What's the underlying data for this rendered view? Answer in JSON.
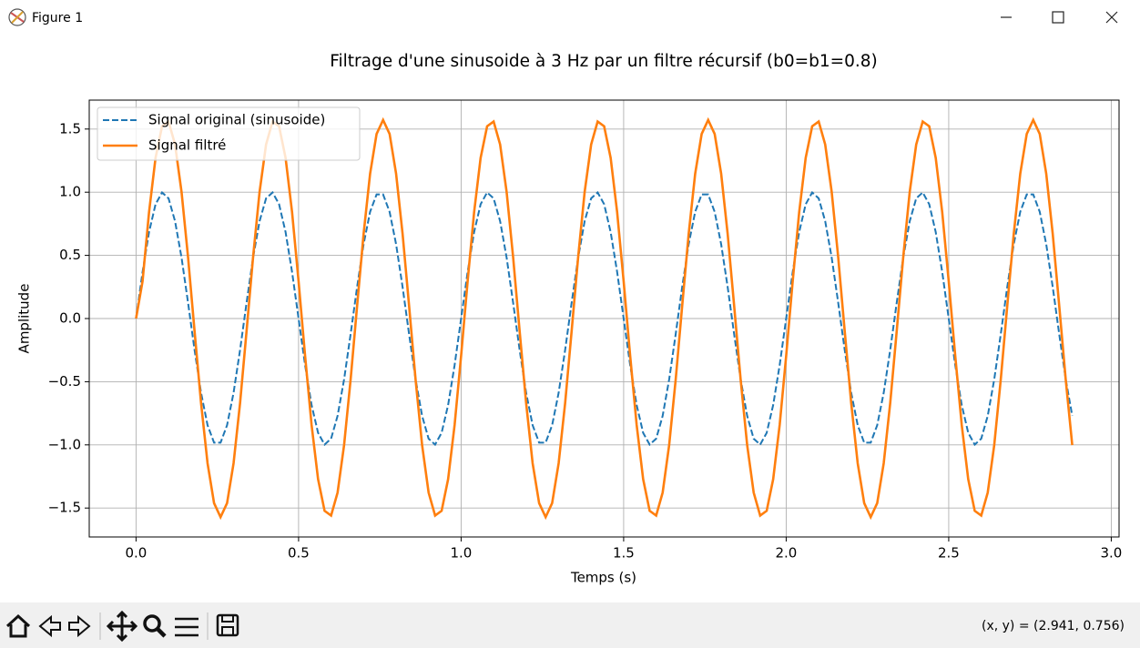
{
  "window": {
    "title": "Figure 1"
  },
  "chart_data": {
    "type": "line",
    "title": "Filtrage d'une sinusoide à 3 Hz par un filtre récursif (b0=b1=0.8)",
    "xlabel": "Temps (s)",
    "ylabel": "Amplitude",
    "x": [
      0,
      0.02,
      0.04,
      0.06,
      0.08,
      0.1,
      0.12,
      0.14,
      0.16,
      0.18,
      0.2,
      0.22,
      0.24,
      0.26,
      0.28,
      0.3,
      0.32,
      0.34,
      0.36,
      0.38,
      0.4,
      0.42,
      0.44,
      0.46,
      0.48,
      0.5,
      0.52,
      0.54,
      0.56,
      0.58,
      0.6,
      0.62,
      0.64,
      0.66,
      0.68,
      0.7,
      0.72,
      0.74,
      0.76,
      0.78,
      0.8,
      0.82,
      0.84,
      0.86,
      0.88,
      0.9,
      0.92,
      0.94,
      0.96,
      0.98,
      1,
      1.02,
      1.04,
      1.06,
      1.08,
      1.1,
      1.12,
      1.14,
      1.16,
      1.18,
      1.2,
      1.22,
      1.24,
      1.26,
      1.28,
      1.3,
      1.32,
      1.34,
      1.36,
      1.38,
      1.4,
      1.42,
      1.44,
      1.46,
      1.48,
      1.5,
      1.52,
      1.54,
      1.56,
      1.58,
      1.6,
      1.62,
      1.64,
      1.66,
      1.68,
      1.7,
      1.72,
      1.74,
      1.76,
      1.78,
      1.8,
      1.82,
      1.84,
      1.86,
      1.88,
      1.9,
      1.92,
      1.94,
      1.96,
      1.98,
      2,
      2.02,
      2.04,
      2.06,
      2.08,
      2.1,
      2.12,
      2.14,
      2.16,
      2.18,
      2.2,
      2.22,
      2.24,
      2.26,
      2.28,
      2.3,
      2.32,
      2.34,
      2.36,
      2.38,
      2.4,
      2.42,
      2.44,
      2.46,
      2.48,
      2.5,
      2.52,
      2.54,
      2.56,
      2.58,
      2.6,
      2.62,
      2.64,
      2.66,
      2.68,
      2.7,
      2.72,
      2.74,
      2.76,
      2.78,
      2.8,
      2.82,
      2.84,
      2.86,
      2.88
    ],
    "series": [
      {
        "name": "Signal original (sinusoide)",
        "color": "#1f77b4",
        "linestyle": "dashed",
        "values": [
          0,
          0.3681,
          0.6845,
          0.9048,
          0.998,
          0.9511,
          0.7705,
          0.4818,
          0.1253,
          -0.2487,
          -0.5878,
          -0.8443,
          -0.9823,
          -0.9823,
          -0.8443,
          -0.5878,
          -0.2487,
          0.1253,
          0.4818,
          0.7705,
          0.9511,
          0.998,
          0.9048,
          0.6845,
          0.3681,
          0,
          -0.3681,
          -0.6845,
          -0.9048,
          -0.998,
          -0.9511,
          -0.7705,
          -0.4818,
          -0.1253,
          0.2487,
          0.5878,
          0.8443,
          0.9823,
          0.9823,
          0.8443,
          0.5878,
          0.2487,
          -0.1253,
          -0.4818,
          -0.7705,
          -0.9511,
          -0.998,
          -0.9048,
          -0.6845,
          -0.3681,
          0,
          0.3681,
          0.6845,
          0.9048,
          0.998,
          0.9511,
          0.7705,
          0.4818,
          0.1253,
          -0.2487,
          -0.5878,
          -0.8443,
          -0.9823,
          -0.9823,
          -0.8443,
          -0.5878,
          -0.2487,
          0.1253,
          0.4818,
          0.7705,
          0.9511,
          0.998,
          0.9048,
          0.6845,
          0.3681,
          0,
          -0.3681,
          -0.6845,
          -0.9048,
          -0.998,
          -0.9511,
          -0.7705,
          -0.4818,
          -0.1253,
          0.2487,
          0.5878,
          0.8443,
          0.9823,
          0.9823,
          0.8443,
          0.5878,
          0.2487,
          -0.1253,
          -0.4818,
          -0.7705,
          -0.9511,
          -0.998,
          -0.9048,
          -0.6845,
          -0.3681,
          0,
          0.3681,
          0.6845,
          0.9048,
          0.998,
          0.9511,
          0.7705,
          0.4818,
          0.1253,
          -0.2487,
          -0.5878,
          -0.8443,
          -0.9823,
          -0.9823,
          -0.8443,
          -0.5878,
          -0.2487,
          0.1253,
          0.4818,
          0.7705,
          0.9511,
          0.998,
          0.9048,
          0.6845,
          0.3681,
          0,
          -0.3681,
          -0.6845,
          -0.9048,
          -0.998,
          -0.9511,
          -0.7705,
          -0.4818,
          -0.1253,
          0.2487,
          0.5878,
          0.8443,
          0.9823,
          0.9823,
          0.8443,
          0.5878,
          0.2487,
          -0.1253,
          -0.4818,
          -0.7705
        ]
      },
      {
        "name": "Signal filtré",
        "color": "#ff7f0e",
        "linestyle": "solid",
        "values": [
          0,
          0.2945,
          0.8421,
          1.2714,
          1.5222,
          1.5593,
          1.3773,
          1.0018,
          0.4857,
          -0.0987,
          -0.6692,
          -1.1457,
          -1.4613,
          -1.5717,
          -1.4613,
          -1.1457,
          -0.6692,
          -0.0987,
          0.4857,
          1.0018,
          1.3773,
          1.5593,
          1.5222,
          1.2714,
          0.8421,
          0.2945,
          -0.2945,
          -0.8421,
          -1.2714,
          -1.5222,
          -1.5593,
          -1.3773,
          -1.0018,
          -0.4857,
          0.0987,
          0.6692,
          1.1457,
          1.4613,
          1.5717,
          1.4613,
          1.1457,
          0.6692,
          0.0987,
          -0.4857,
          -1.0018,
          -1.3773,
          -1.5593,
          -1.5222,
          -1.2714,
          -0.8421,
          -0.2945,
          0.2945,
          0.8421,
          1.2714,
          1.5222,
          1.5593,
          1.3773,
          1.0018,
          0.4857,
          -0.0987,
          -0.6692,
          -1.1457,
          -1.4613,
          -1.5717,
          -1.4613,
          -1.1457,
          -0.6692,
          -0.0987,
          0.4857,
          1.0018,
          1.3773,
          1.5593,
          1.5222,
          1.2714,
          0.8421,
          0.2945,
          -0.2945,
          -0.8421,
          -1.2714,
          -1.5222,
          -1.5593,
          -1.3773,
          -1.0018,
          -0.4857,
          0.0987,
          0.6692,
          1.1457,
          1.4613,
          1.5717,
          1.4613,
          1.1457,
          0.6692,
          0.0987,
          -0.4857,
          -1.0018,
          -1.3773,
          -1.5593,
          -1.5222,
          -1.2714,
          -0.8421,
          -0.2945,
          0.2945,
          0.8421,
          1.2714,
          1.5222,
          1.5593,
          1.3773,
          1.0018,
          0.4857,
          -0.0987,
          -0.6692,
          -1.1457,
          -1.4613,
          -1.5717,
          -1.4613,
          -1.1457,
          -0.6692,
          -0.0987,
          0.4857,
          1.0018,
          1.3773,
          1.5593,
          1.5222,
          1.2714,
          0.8421,
          0.2945,
          -0.2945,
          -0.8421,
          -1.2714,
          -1.5222,
          -1.5593,
          -1.3773,
          -1.0018,
          -0.4857,
          0.0987,
          0.6692,
          1.1457,
          1.4613,
          1.5717,
          1.4613,
          1.1457,
          0.6692,
          0.0987,
          -0.4857,
          -1.0018
        ]
      }
    ],
    "xlim": [
      -0.144,
      3.024
    ],
    "ylim": [
      -1.729,
      1.729
    ],
    "xticks": [
      {
        "value": 0,
        "label": "0.0"
      },
      0.5,
      {
        "value": 1,
        "label": "1.0"
      },
      1.5,
      {
        "value": 2,
        "label": "2.0"
      },
      2.5,
      {
        "value": 3,
        "label": "3.0"
      }
    ],
    "yticks": [
      {
        "value": -1.5,
        "label": "−1.5"
      },
      {
        "value": -1,
        "label": "−1.0"
      },
      {
        "value": -0.5,
        "label": "−0.5"
      },
      {
        "value": 0,
        "label": "0.0"
      },
      0.5,
      {
        "value": 1,
        "label": "1.0"
      },
      1.5
    ],
    "grid": true,
    "legend": "upper left"
  },
  "status_bar": {
    "text": "(x, y) = (2.941, 0.756)"
  }
}
